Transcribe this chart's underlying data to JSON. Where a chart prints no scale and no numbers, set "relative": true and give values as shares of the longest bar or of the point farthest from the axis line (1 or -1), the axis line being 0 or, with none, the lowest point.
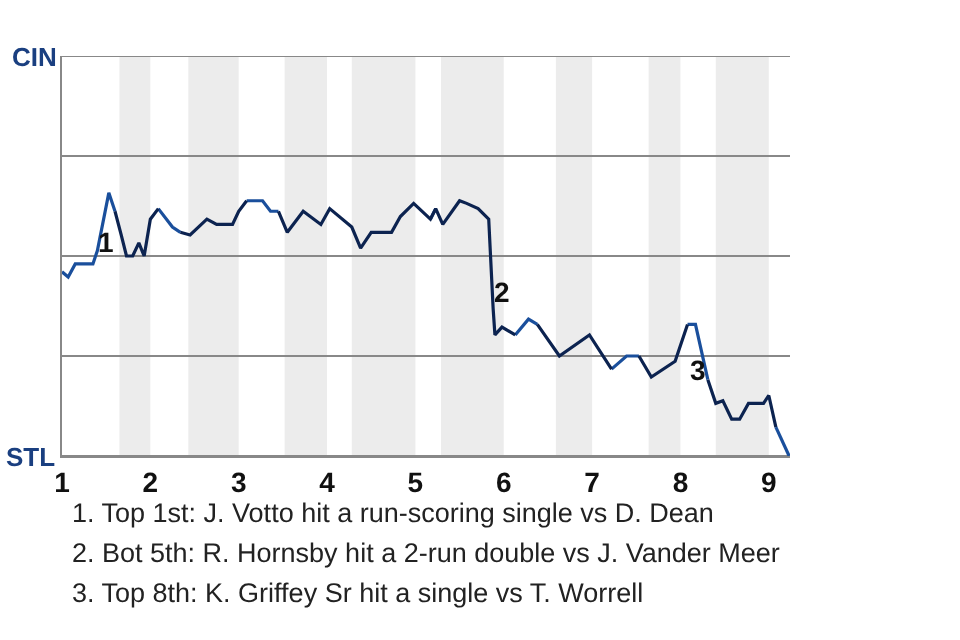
{
  "chart_data": {
    "type": "line",
    "x": [
      1.0,
      1.07,
      1.15,
      1.35,
      1.4,
      1.53,
      1.6,
      1.67,
      1.73,
      1.8,
      1.87,
      1.93,
      2.0,
      2.09,
      2.25,
      2.34,
      2.45,
      2.64,
      2.75,
      2.93,
      3.0,
      3.09,
      3.27,
      3.36,
      3.45,
      3.55,
      3.73,
      3.93,
      4.03,
      4.28,
      4.38,
      4.5,
      4.73,
      4.83,
      4.98,
      5.17,
      5.23,
      5.31,
      5.5,
      5.58,
      5.71,
      5.83,
      5.88,
      5.9,
      5.98,
      6.13,
      6.28,
      6.38,
      6.63,
      6.97,
      7.22,
      7.39,
      7.53,
      7.67,
      7.94,
      8.08,
      8.17,
      8.31,
      8.4,
      8.48,
      8.58,
      8.67,
      8.77,
      8.94,
      9.0,
      9.08,
      9.23
    ],
    "series": [
      {
        "color": "#1a4f9c",
        "values": [
          0.7,
          0.68,
          0.73,
          0.73,
          0.78,
          1.0,
          0.93,
          null,
          null,
          null,
          null,
          null,
          null,
          0.94,
          0.87,
          0.85,
          null,
          null,
          null,
          null,
          null,
          0.97,
          0.97,
          0.93,
          0.93,
          null,
          null,
          null,
          null,
          null,
          null,
          null,
          null,
          null,
          null,
          0.9,
          0.94,
          null,
          null,
          null,
          null,
          null,
          null,
          null,
          null,
          0.46,
          0.52,
          0.5,
          null,
          null,
          0.33,
          0.38,
          0.38,
          null,
          null,
          0.5,
          0.5,
          0.29,
          null,
          null,
          null,
          null,
          null,
          null,
          null,
          0.11,
          0
        ]
      },
      {
        "color": "#0c2350",
        "values": [
          null,
          null,
          null,
          null,
          null,
          null,
          0.93,
          0.84,
          0.76,
          0.76,
          0.81,
          0.76,
          0.9,
          0.94,
          null,
          0.85,
          0.84,
          0.9,
          0.88,
          0.88,
          0.93,
          0.97,
          null,
          null,
          0.93,
          0.85,
          0.93,
          0.88,
          0.94,
          0.87,
          0.79,
          0.85,
          0.85,
          0.91,
          0.96,
          0.9,
          0.94,
          0.88,
          0.97,
          0.96,
          0.94,
          0.9,
          0.56,
          0.46,
          0.49,
          0.46,
          null,
          0.5,
          0.38,
          0.46,
          0.33,
          null,
          0.38,
          0.3,
          0.36,
          0.5,
          null,
          0.29,
          0.2,
          0.21,
          0.14,
          0.14,
          0.2,
          0.2,
          0.23,
          0.11,
          null
        ]
      }
    ],
    "relative": true,
    "xlim": [
      1,
      9.24
    ],
    "xticks": [
      1,
      2,
      3,
      4,
      5,
      6,
      7,
      8,
      9
    ],
    "marker": "none",
    "line_style": "solid",
    "ref_lines": [
      {
        "axis": "y",
        "value": 0,
        "label": "STL",
        "color": "#888888"
      },
      {
        "axis": "y",
        "value": 0.38,
        "color": "#888888"
      },
      {
        "axis": "y",
        "value": 0.76,
        "color": "#888888"
      },
      {
        "axis": "y",
        "value": 1.14,
        "color": "#888888"
      },
      {
        "axis": "y",
        "value": 1.52,
        "label": "CIN",
        "color": "#888888"
      }
    ],
    "bands": [
      {
        "axis": "x",
        "from": 1.65,
        "to": 2,
        "color": "#ececec"
      },
      {
        "axis": "x",
        "from": 2.43,
        "to": 3,
        "color": "#ececec"
      },
      {
        "axis": "x",
        "from": 3.52,
        "to": 4,
        "color": "#ececec"
      },
      {
        "axis": "x",
        "from": 4.28,
        "to": 5,
        "color": "#ececec"
      },
      {
        "axis": "x",
        "from": 5.29,
        "to": 6,
        "color": "#ececec"
      },
      {
        "axis": "x",
        "from": 6.59,
        "to": 7,
        "color": "#ececec"
      },
      {
        "axis": "x",
        "from": 7.64,
        "to": 8,
        "color": "#ececec"
      },
      {
        "axis": "x",
        "from": 8.4,
        "to": 9,
        "color": "#ececec"
      }
    ],
    "annotations": [
      {
        "text": "1",
        "x": 1.5,
        "y": 0.81
      },
      {
        "text": "2",
        "x": 5.98,
        "y": 0.62
      },
      {
        "text": "3",
        "x": 8.2,
        "y": 0.33
      },
      "1. Top 1st: J. Votto hit a run-scoring single vs D. Dean",
      "2. Bot 5th: R. Hornsby hit a 2-run double vs J. Vander Meer",
      "3. Top 8th: K. Griffey Sr hit a single vs T. Worrell"
    ]
  }
}
